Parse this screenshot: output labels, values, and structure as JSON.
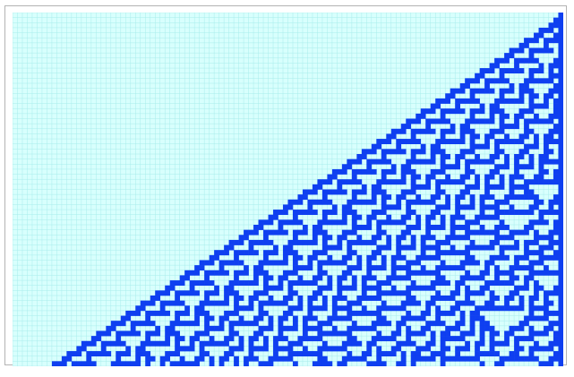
{
  "automaton": {
    "rows": 70,
    "cols": 112,
    "seed_rule": "right-column-alive",
    "colors": {
      "background": "#d8fffd",
      "grid_line": "#a8ecec",
      "cell_on": "#0f3ff0",
      "frame_border": "#b3b3b3"
    }
  }
}
